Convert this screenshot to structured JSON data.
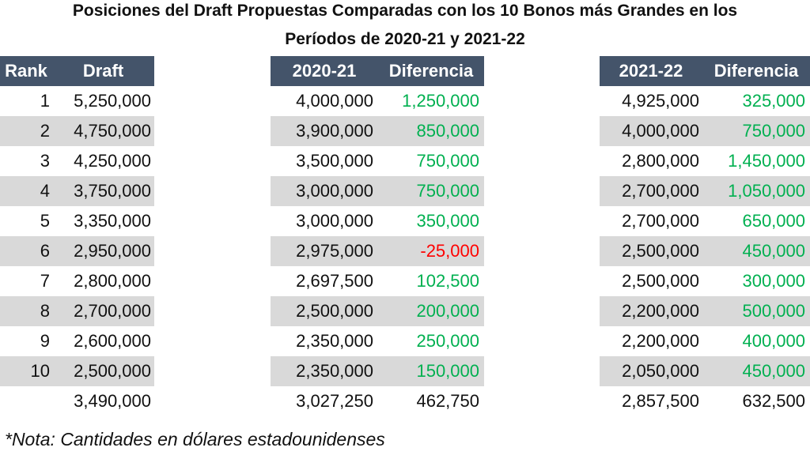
{
  "title_line1": "Posiciones del Draft Propuestas Comparadas con los 10 Bonos más Grandes en los",
  "title_line2": "Períodos de 2020-21 y 2021-22",
  "headers": {
    "rank": "Rank",
    "draft": "Draft",
    "season1": "2020-21",
    "diff1": "Diferencia",
    "season2": "2021-22",
    "diff2": "Diferencia"
  },
  "rows": [
    {
      "rank": "1",
      "draft": "5,250,000",
      "s1": "4,000,000",
      "d1": "1,250,000",
      "s2": "4,925,000",
      "d2": "325,000"
    },
    {
      "rank": "2",
      "draft": "4,750,000",
      "s1": "3,900,000",
      "d1": "850,000",
      "s2": "4,000,000",
      "d2": "750,000"
    },
    {
      "rank": "3",
      "draft": "4,250,000",
      "s1": "3,500,000",
      "d1": "750,000",
      "s2": "2,800,000",
      "d2": "1,450,000"
    },
    {
      "rank": "4",
      "draft": "3,750,000",
      "s1": "3,000,000",
      "d1": "750,000",
      "s2": "2,700,000",
      "d2": "1,050,000"
    },
    {
      "rank": "5",
      "draft": "3,350,000",
      "s1": "3,000,000",
      "d1": "350,000",
      "s2": "2,700,000",
      "d2": "650,000"
    },
    {
      "rank": "6",
      "draft": "2,950,000",
      "s1": "2,975,000",
      "d1": "-25,000",
      "s2": "2,500,000",
      "d2": "450,000"
    },
    {
      "rank": "7",
      "draft": "2,800,000",
      "s1": "2,697,500",
      "d1": "102,500",
      "s2": "2,500,000",
      "d2": "300,000"
    },
    {
      "rank": "8",
      "draft": "2,700,000",
      "s1": "2,500,000",
      "d1": "200,000",
      "s2": "2,200,000",
      "d2": "500,000"
    },
    {
      "rank": "9",
      "draft": "2,600,000",
      "s1": "2,350,000",
      "d1": "250,000",
      "s2": "2,200,000",
      "d2": "400,000"
    },
    {
      "rank": "10",
      "draft": "2,500,000",
      "s1": "2,350,000",
      "d1": "150,000",
      "s2": "2,050,000",
      "d2": "450,000"
    }
  ],
  "totals": {
    "draft": "3,490,000",
    "s1": "3,027,250",
    "d1": "462,750",
    "s2": "2,857,500",
    "d2": "632,500"
  },
  "note": "*Nota: Cantidades en dólares estadounidenses",
  "colors": {
    "header_bg": "#44546a",
    "stripe": "#d9d9d9",
    "positive": "#00b050",
    "negative": "#ff0000"
  }
}
